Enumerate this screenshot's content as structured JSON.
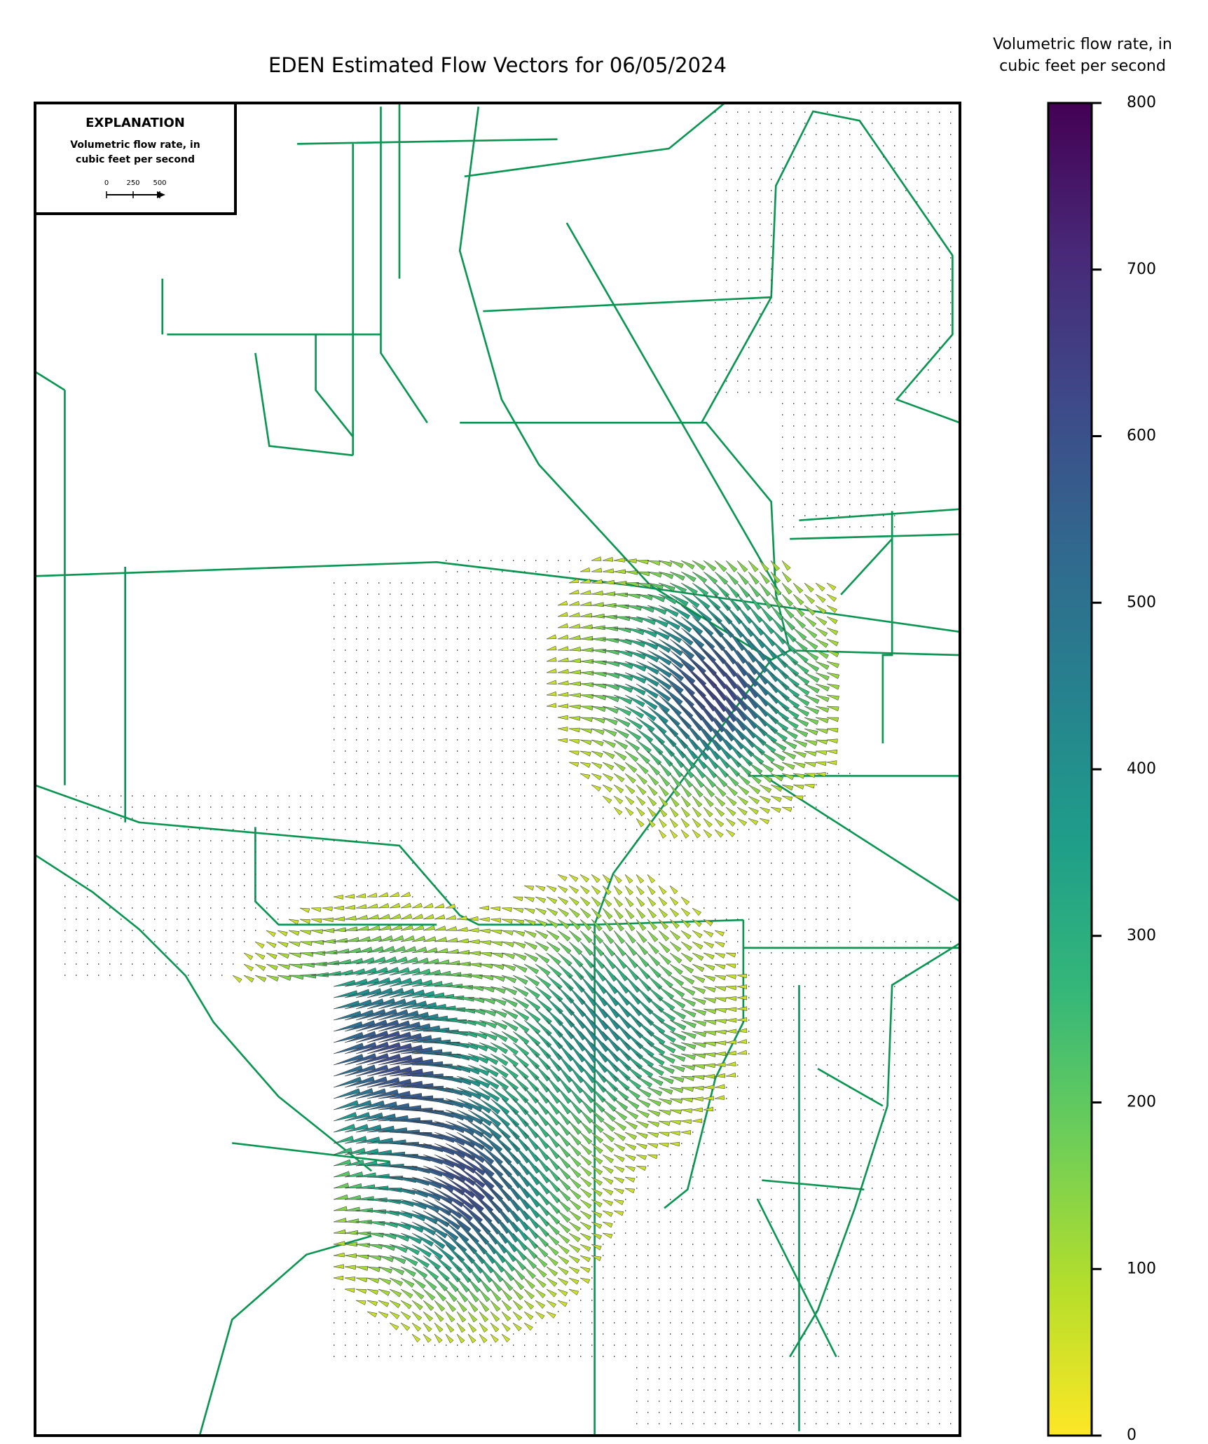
{
  "chart_data": {
    "type": "colorbar",
    "title": "EDEN Estimated Flow Vectors for 06/05/2024",
    "colorbar_label": [
      "Volumetric flow rate, in",
      "cubic feet per second"
    ],
    "ylim": [
      0,
      800
    ],
    "yticks": [
      0,
      100,
      200,
      300,
      400,
      500,
      600,
      700,
      800
    ],
    "colormap": [
      "#fde725",
      "#b5de2b",
      "#6ece58",
      "#35b779",
      "#1f9e89",
      "#26828e",
      "#31688e",
      "#3e4989",
      "#482878",
      "#440154"
    ]
  },
  "explanation": {
    "title": "EXPLANATION",
    "subtitle": [
      "Volumetric flow rate, in",
      "cubic feet per second"
    ],
    "scale_ticks": [
      0,
      250,
      500
    ]
  }
}
